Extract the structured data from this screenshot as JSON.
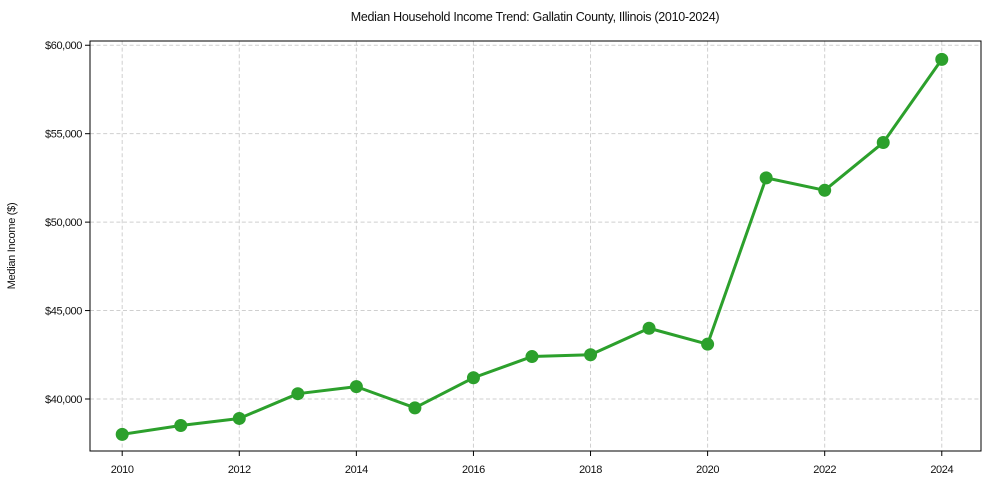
{
  "figure": {
    "background": "#ffffff"
  },
  "chart_data": {
    "type": "line",
    "title": "Median Household Income Trend: Gallatin County, Illinois (2010-2024)",
    "xlabel": "",
    "ylabel": "Median Income ($)",
    "x": [
      2010,
      2011,
      2012,
      2013,
      2014,
      2015,
      2016,
      2017,
      2018,
      2019,
      2020,
      2021,
      2022,
      2023,
      2024
    ],
    "series": [
      {
        "name": "Median Household Income",
        "values": [
          38000,
          38500,
          38900,
          40300,
          40700,
          39500,
          41200,
          42400,
          42500,
          44000,
          43100,
          52500,
          51800,
          54500,
          59200
        ],
        "color": "#2ca02c",
        "marker": "circle",
        "marker_size": 6.5,
        "line_width": 3
      }
    ],
    "x_ticks": [
      2010,
      2012,
      2014,
      2016,
      2018,
      2020,
      2022,
      2024
    ],
    "x_tick_labels": [
      "2010",
      "2012",
      "2014",
      "2016",
      "2018",
      "2020",
      "2022",
      "2024"
    ],
    "y_ticks": [
      40000,
      45000,
      50000,
      55000,
      60000
    ],
    "y_tick_labels": [
      "$40,000",
      "$45,000",
      "$50,000",
      "$55,000",
      "$60,000"
    ],
    "xlim": [
      2009.45,
      2024.67
    ],
    "ylim": [
      37060,
      60240
    ],
    "grid": true,
    "grid_style": "dashed",
    "grid_color": "#cfcfcf",
    "legend_position": "none",
    "axis_color": "#000000",
    "text_color": "#111111"
  }
}
